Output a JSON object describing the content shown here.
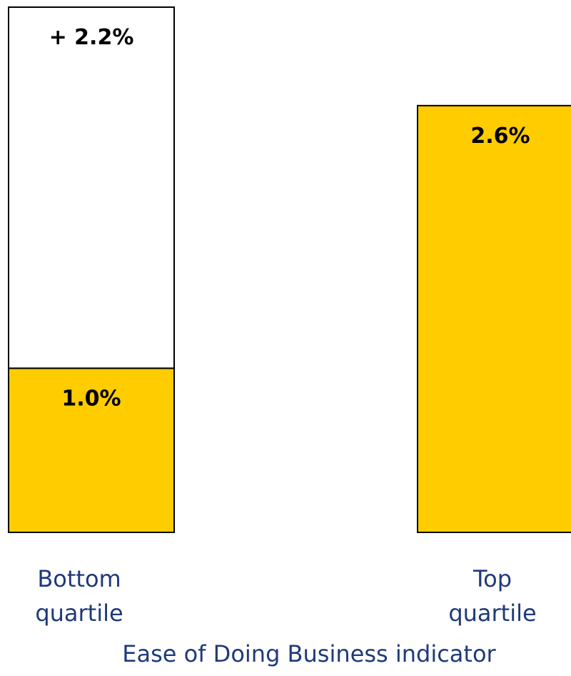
{
  "chart_data": {
    "type": "bar",
    "stacked": true,
    "categories": [
      [
        "Bottom",
        "quartile"
      ],
      [
        "Top",
        "quartile"
      ]
    ],
    "series": [
      {
        "values": [
          1.0,
          2.6
        ],
        "color": "#FFCC00",
        "labels": [
          "1.0%",
          "2.6%"
        ]
      },
      {
        "values": [
          2.2,
          0
        ],
        "color": "#FFFFFF",
        "labels": [
          "+ 2.2%",
          ""
        ]
      }
    ],
    "xlabel": "Ease of Doing Business indicator",
    "ylabel": "",
    "ylim": [
      0,
      3.2
    ],
    "grid": false,
    "legend": "none",
    "text_color": "#1F3A7A",
    "bar_outline": "#000000"
  }
}
